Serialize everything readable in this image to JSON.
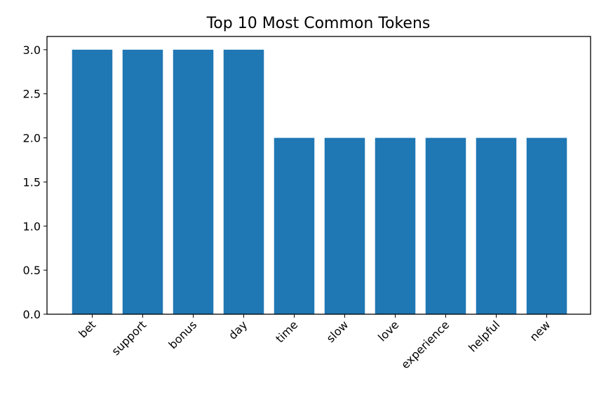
{
  "chart_data": {
    "type": "bar",
    "title": "Top 10 Most Common Tokens",
    "xlabel": "",
    "ylabel": "",
    "categories": [
      "bet",
      "support",
      "bonus",
      "day",
      "time",
      "slow",
      "love",
      "experience",
      "helpful",
      "new"
    ],
    "values": [
      3,
      3,
      3,
      3,
      2,
      2,
      2,
      2,
      2,
      2
    ],
    "ylim": [
      0,
      3.15
    ],
    "yticks": [
      "0.0",
      "0.5",
      "1.0",
      "1.5",
      "2.0",
      "2.5",
      "3.0"
    ],
    "bar_color": "#1f77b4",
    "grid": false,
    "legend": "none"
  }
}
